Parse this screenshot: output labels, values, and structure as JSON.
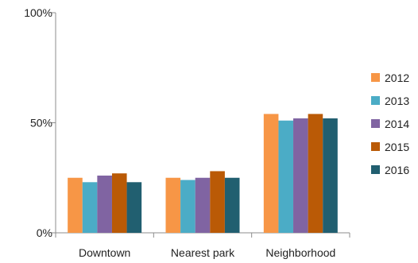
{
  "chart_data": {
    "type": "bar",
    "categories": [
      "Downtown",
      "Nearest park",
      "Neighborhood"
    ],
    "series": [
      {
        "name": "2012",
        "color": "#F79646",
        "values": [
          25,
          25,
          54
        ]
      },
      {
        "name": "2013",
        "color": "#4BACC6",
        "values": [
          23,
          24,
          51
        ]
      },
      {
        "name": "2014",
        "color": "#8064A2",
        "values": [
          26,
          25,
          52
        ]
      },
      {
        "name": "2015",
        "color": "#BA5A06",
        "values": [
          27,
          28,
          54
        ]
      },
      {
        "name": "2016",
        "color": "#215F70",
        "values": [
          23,
          25,
          52
        ]
      }
    ],
    "y_ticks": [
      "0%",
      "50%",
      "100%"
    ],
    "ylim": [
      0,
      100
    ],
    "legend_position": "right",
    "grid": false,
    "title": "",
    "xlabel": "",
    "ylabel": ""
  }
}
